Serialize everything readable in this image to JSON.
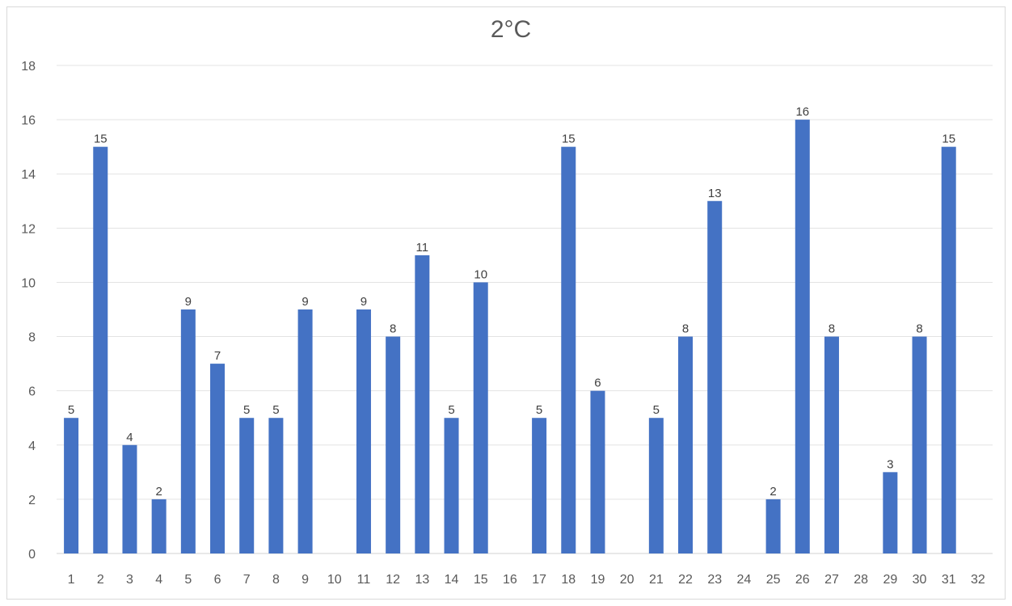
{
  "chart_data": {
    "type": "bar",
    "title": "2°C",
    "xlabel": "",
    "ylabel": "",
    "categories": [
      "1",
      "2",
      "3",
      "4",
      "5",
      "6",
      "7",
      "8",
      "9",
      "10",
      "11",
      "12",
      "13",
      "14",
      "15",
      "16",
      "17",
      "18",
      "19",
      "20",
      "21",
      "22",
      "23",
      "24",
      "25",
      "26",
      "27",
      "28",
      "29",
      "30",
      "31",
      "32"
    ],
    "values": [
      5,
      15,
      4,
      2,
      9,
      7,
      5,
      5,
      9,
      null,
      9,
      8,
      11,
      5,
      10,
      null,
      5,
      15,
      6,
      null,
      5,
      8,
      13,
      null,
      2,
      16,
      8,
      null,
      3,
      8,
      15,
      null
    ],
    "ylim": [
      0,
      18
    ],
    "yticks": [
      0,
      2,
      4,
      6,
      8,
      10,
      12,
      14,
      16,
      18
    ],
    "grid": true,
    "data_labels": true,
    "legend": "none",
    "bar_color": "#4472c4"
  }
}
